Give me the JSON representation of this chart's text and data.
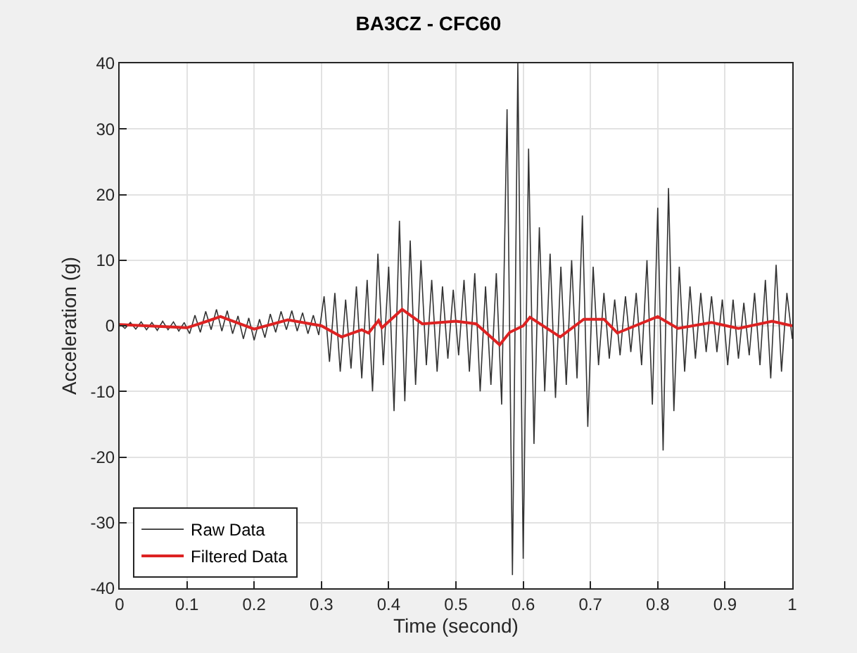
{
  "chart_data": {
    "type": "line",
    "title": "BA3CZ - CFC60",
    "xlabel": "Time (second)",
    "ylabel": "Acceleration (g)",
    "xlim": [
      0,
      1
    ],
    "ylim": [
      -40,
      40
    ],
    "xticks": [
      0,
      0.1,
      0.2,
      0.3,
      0.4,
      0.5,
      0.6,
      0.7,
      0.8,
      0.9,
      1
    ],
    "yticks": [
      -40,
      -30,
      -20,
      -10,
      0,
      10,
      20,
      30,
      40
    ],
    "grid": true,
    "legend": "bottom left",
    "marker": "none",
    "line_style": "solid",
    "series": [
      {
        "name": "Raw Data",
        "color": "#333333",
        "x": [
          0,
          0.008,
          0.016,
          0.024,
          0.032,
          0.04,
          0.048,
          0.056,
          0.064,
          0.072,
          0.08,
          0.088,
          0.096,
          0.104,
          0.112,
          0.12,
          0.128,
          0.136,
          0.144,
          0.152,
          0.16,
          0.168,
          0.176,
          0.184,
          0.192,
          0.2,
          0.208,
          0.216,
          0.224,
          0.232,
          0.24,
          0.248,
          0.256,
          0.264,
          0.272,
          0.28,
          0.288,
          0.296,
          0.304,
          0.312,
          0.32,
          0.328,
          0.336,
          0.344,
          0.352,
          0.36,
          0.368,
          0.376,
          0.384,
          0.392,
          0.4,
          0.408,
          0.416,
          0.424,
          0.432,
          0.44,
          0.448,
          0.456,
          0.464,
          0.472,
          0.48,
          0.488,
          0.496,
          0.504,
          0.512,
          0.52,
          0.528,
          0.536,
          0.544,
          0.552,
          0.56,
          0.568,
          0.576,
          0.584,
          0.592,
          0.6,
          0.608,
          0.616,
          0.624,
          0.632,
          0.64,
          0.648,
          0.656,
          0.664,
          0.672,
          0.68,
          0.688,
          0.696,
          0.704,
          0.712,
          0.72,
          0.728,
          0.736,
          0.744,
          0.752,
          0.76,
          0.768,
          0.776,
          0.784,
          0.792,
          0.8,
          0.808,
          0.816,
          0.824,
          0.832,
          0.84,
          0.848,
          0.856,
          0.864,
          0.872,
          0.88,
          0.888,
          0.896,
          0.904,
          0.912,
          0.92,
          0.928,
          0.936,
          0.944,
          0.952,
          0.96,
          0.968,
          0.976,
          0.984,
          0.992,
          1
        ],
        "values": [
          0.3,
          -0.4,
          0.5,
          -0.5,
          0.6,
          -0.6,
          0.5,
          -0.7,
          0.7,
          -0.6,
          0.6,
          -0.8,
          0.5,
          -1.2,
          1.6,
          -1,
          2.2,
          -0.6,
          2.5,
          -0.8,
          2.3,
          -1.2,
          1.5,
          -2,
          1.2,
          -2.2,
          1,
          -1.8,
          1.8,
          -1,
          2.2,
          -0.6,
          2.3,
          -0.8,
          2,
          -1.2,
          1.6,
          -1.4,
          4.5,
          -5.5,
          5,
          -7,
          4,
          -6.5,
          6,
          -8,
          7,
          -10,
          11,
          -6,
          9,
          -13,
          16,
          -11.5,
          13,
          -9,
          10,
          -6,
          7,
          -7,
          6,
          -5,
          5.5,
          -4.5,
          7,
          -7,
          8,
          -10,
          6,
          -9,
          8,
          -12,
          33,
          -38,
          40,
          -35.5,
          27,
          -18,
          15,
          -10,
          11,
          -11,
          9,
          -9,
          10,
          -8,
          16.8,
          -15.4,
          9,
          -6,
          5,
          -5,
          4,
          -4.5,
          4.5,
          -4,
          5,
          -6,
          10,
          -12,
          18,
          -19,
          21,
          -13,
          9,
          -7,
          6,
          -5,
          5,
          -4,
          4.5,
          -4,
          4,
          -6,
          4,
          -5,
          3.5,
          -4.5,
          5,
          -6,
          7,
          -8,
          9.3,
          -7,
          5,
          -2
        ]
      },
      {
        "name": "Filtered Data",
        "color": "#dd2222",
        "x": [
          0,
          0.1,
          0.13,
          0.15,
          0.2,
          0.25,
          0.3,
          0.33,
          0.36,
          0.37,
          0.385,
          0.39,
          0.42,
          0.45,
          0.5,
          0.53,
          0.565,
          0.58,
          0.6,
          0.61,
          0.655,
          0.69,
          0.72,
          0.74,
          0.8,
          0.83,
          0.88,
          0.92,
          0.97,
          1
        ],
        "values": [
          0.2,
          -0.3,
          0.7,
          1.4,
          -0.5,
          0.9,
          0,
          -1.7,
          -0.6,
          -1.1,
          0.8,
          -0.3,
          2.5,
          0.3,
          0.7,
          0.3,
          -2.9,
          -1,
          0,
          1.3,
          -1.7,
          1,
          1,
          -1.1,
          1.4,
          -0.4,
          0.5,
          -0.4,
          0.7,
          0
        ]
      }
    ]
  }
}
